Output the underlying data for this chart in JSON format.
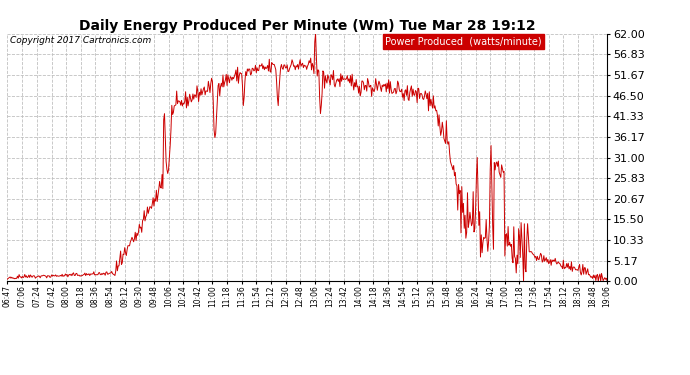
{
  "title": "Daily Energy Produced Per Minute (Wm) Tue Mar 28 19:12",
  "copyright": "Copyright 2017 Cartronics.com",
  "legend_label": "Power Produced  (watts/minute)",
  "legend_bg": "#cc0000",
  "legend_text_color": "#ffffff",
  "line_color": "#cc0000",
  "bg_color": "#ffffff",
  "grid_color": "#c0c0c0",
  "ylim": [
    0,
    62.0
  ],
  "yticks": [
    0.0,
    5.17,
    10.33,
    15.5,
    20.67,
    25.83,
    31.0,
    36.17,
    41.33,
    46.5,
    51.67,
    56.83,
    62.0
  ],
  "xtick_labels": [
    "06:47",
    "07:06",
    "07:24",
    "07:42",
    "08:00",
    "08:18",
    "08:36",
    "08:54",
    "09:12",
    "09:30",
    "09:48",
    "10:06",
    "10:24",
    "10:42",
    "11:00",
    "11:18",
    "11:36",
    "11:54",
    "12:12",
    "12:30",
    "12:48",
    "13:06",
    "13:24",
    "13:42",
    "14:00",
    "14:18",
    "14:36",
    "14:54",
    "15:12",
    "15:30",
    "15:48",
    "16:06",
    "16:24",
    "16:42",
    "17:00",
    "17:18",
    "17:36",
    "17:54",
    "18:12",
    "18:30",
    "18:48",
    "19:06"
  ],
  "title_fontsize": 10,
  "copyright_fontsize": 6.5,
  "legend_fontsize": 7,
  "ytick_fontsize": 8,
  "xtick_fontsize": 5.5
}
